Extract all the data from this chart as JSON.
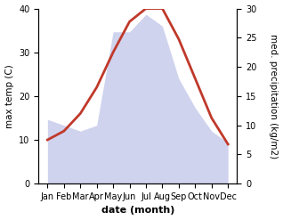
{
  "months": [
    "Jan",
    "Feb",
    "Mar",
    "Apr",
    "May",
    "Jun",
    "Jul",
    "Aug",
    "Sep",
    "Oct",
    "Nov",
    "Dec"
  ],
  "max_temp": [
    10,
    12,
    16,
    22,
    30,
    37,
    40,
    40,
    33,
    24,
    15,
    9
  ],
  "precipitation": [
    11,
    10,
    9,
    10,
    26,
    26,
    29,
    27,
    18,
    13,
    9,
    7
  ],
  "temp_color": "#c0392b",
  "precip_color_fill": "#aab0e0",
  "background_color": "#ffffff",
  "xlabel": "date (month)",
  "ylabel_left": "max temp (C)",
  "ylabel_right": "med. precipitation (kg/m2)",
  "ylim_left": [
    0,
    40
  ],
  "ylim_right": [
    0,
    30
  ],
  "yticks_left": [
    0,
    10,
    20,
    30,
    40
  ],
  "yticks_right": [
    0,
    5,
    10,
    15,
    20,
    25,
    30
  ],
  "temp_linewidth": 2.0,
  "precip_alpha": 0.55,
  "xlabel_fontsize": 8,
  "ylabel_fontsize": 7.5,
  "tick_fontsize": 7
}
